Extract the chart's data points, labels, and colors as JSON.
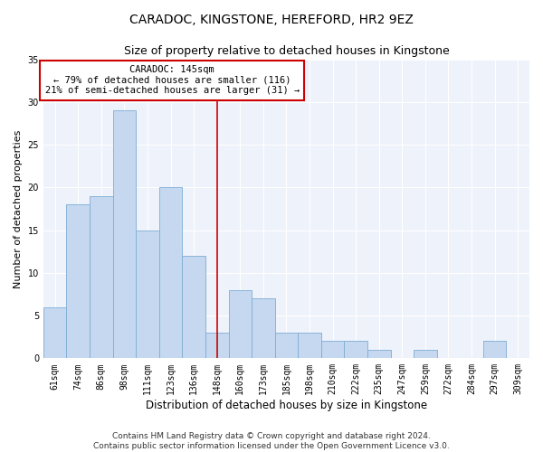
{
  "title": "CARADOC, KINGSTONE, HEREFORD, HR2 9EZ",
  "subtitle": "Size of property relative to detached houses in Kingstone",
  "xlabel": "Distribution of detached houses by size in Kingstone",
  "ylabel": "Number of detached properties",
  "categories": [
    "61sqm",
    "74sqm",
    "86sqm",
    "98sqm",
    "111sqm",
    "123sqm",
    "136sqm",
    "148sqm",
    "160sqm",
    "173sqm",
    "185sqm",
    "198sqm",
    "210sqm",
    "222sqm",
    "235sqm",
    "247sqm",
    "259sqm",
    "272sqm",
    "284sqm",
    "297sqm",
    "309sqm"
  ],
  "values": [
    6,
    18,
    19,
    29,
    15,
    20,
    12,
    3,
    8,
    7,
    3,
    3,
    2,
    2,
    1,
    0,
    1,
    0,
    0,
    2,
    0
  ],
  "bar_color": "#c5d8f0",
  "bar_edge_color": "#7eadd4",
  "vline_x_index": 7,
  "vline_color": "#cc0000",
  "annotation_box_color": "#cc0000",
  "annotation_line1": "CARADOC: 145sqm",
  "annotation_line2": "← 79% of detached houses are smaller (116)",
  "annotation_line3": "21% of semi-detached houses are larger (31) →",
  "ylim": [
    0,
    35
  ],
  "yticks": [
    0,
    5,
    10,
    15,
    20,
    25,
    30,
    35
  ],
  "background_color": "#eef2fb",
  "footer": "Contains HM Land Registry data © Crown copyright and database right 2024.\nContains public sector information licensed under the Open Government Licence v3.0.",
  "title_fontsize": 10,
  "subtitle_fontsize": 9,
  "xlabel_fontsize": 8.5,
  "ylabel_fontsize": 8,
  "tick_fontsize": 7,
  "annotation_fontsize": 7.5,
  "footer_fontsize": 6.5
}
